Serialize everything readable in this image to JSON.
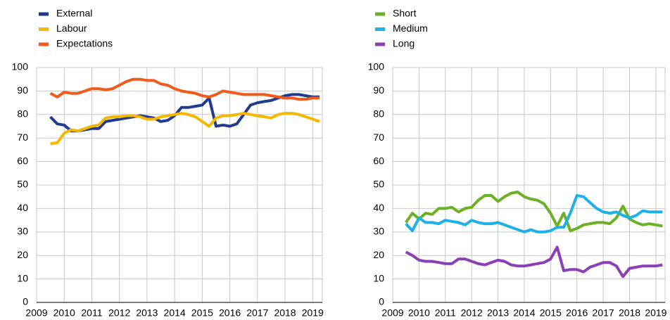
{
  "chart_data": [
    {
      "type": "line",
      "x": [
        2009.5,
        2009.75,
        2010,
        2010.25,
        2010.5,
        2010.75,
        2011,
        2011.25,
        2011.5,
        2011.75,
        2012,
        2012.25,
        2012.5,
        2012.75,
        2013,
        2013.25,
        2013.5,
        2013.75,
        2014,
        2014.25,
        2014.5,
        2014.75,
        2015,
        2015.25,
        2015.5,
        2015.75,
        2016,
        2016.25,
        2016.5,
        2016.75,
        2017,
        2017.25,
        2017.5,
        2017.75,
        2018,
        2018.25,
        2018.5,
        2018.75,
        2019,
        2019.25
      ],
      "series": [
        {
          "name": "External",
          "color": "#1f3b8f",
          "values": [
            79,
            76,
            75.5,
            73,
            73,
            73.5,
            74,
            74,
            77,
            77.5,
            78,
            78.5,
            79,
            79.5,
            79,
            78.5,
            77,
            77.5,
            79.5,
            83,
            83,
            83.5,
            84,
            87,
            75,
            75.5,
            75,
            76,
            80,
            84,
            85,
            85.5,
            86,
            87,
            88,
            88.5,
            88.5,
            88,
            87.5,
            87.5
          ]
        },
        {
          "name": "Labour",
          "color": "#f5b800",
          "values": [
            67.5,
            68,
            72,
            73.5,
            73,
            74,
            75,
            75.5,
            78.5,
            79,
            79,
            79.5,
            79.5,
            79,
            78,
            78,
            79,
            79.5,
            80,
            80.5,
            80,
            79,
            77,
            75,
            78.5,
            79.5,
            79.5,
            80,
            80.5,
            80,
            79.5,
            79,
            78.5,
            80,
            80.5,
            80.5,
            80,
            79,
            78,
            77
          ]
        },
        {
          "name": "Expectations",
          "color": "#f15a1b",
          "values": [
            89,
            87.5,
            89.5,
            89,
            89,
            90,
            91,
            91,
            90.5,
            91,
            92.5,
            94,
            95,
            95,
            94.5,
            94.5,
            93,
            92.5,
            91,
            90,
            89.5,
            89,
            88,
            87.5,
            88.5,
            90,
            89.5,
            89,
            88.5,
            88.5,
            88.5,
            88.5,
            88,
            87.5,
            87,
            87,
            86.5,
            86.5,
            87,
            87
          ]
        }
      ],
      "xlim": [
        2009,
        2019.35
      ],
      "xticks": [
        2009,
        2010,
        2011,
        2012,
        2013,
        2014,
        2015,
        2016,
        2017,
        2018,
        2019
      ],
      "ylim": [
        0,
        100
      ],
      "yticks": [
        0,
        10,
        20,
        30,
        40,
        50,
        60,
        70,
        80,
        90,
        100
      ],
      "grid": true,
      "legend": "top-left"
    },
    {
      "type": "line",
      "x": [
        2009.5,
        2009.75,
        2010,
        2010.25,
        2010.5,
        2010.75,
        2011,
        2011.25,
        2011.5,
        2011.75,
        2012,
        2012.25,
        2012.5,
        2012.75,
        2013,
        2013.25,
        2013.5,
        2013.75,
        2014,
        2014.25,
        2014.5,
        2014.75,
        2015,
        2015.25,
        2015.5,
        2015.75,
        2016,
        2016.25,
        2016.5,
        2016.75,
        2017,
        2017.25,
        2017.5,
        2017.75,
        2018,
        2018.25,
        2018.5,
        2018.75,
        2019,
        2019.25
      ],
      "series": [
        {
          "name": "Short",
          "color": "#6bb125",
          "values": [
            34,
            38,
            35.5,
            38,
            37.5,
            40,
            40,
            40.5,
            38.5,
            40,
            40.5,
            43.5,
            45.5,
            45.5,
            43,
            45,
            46.5,
            47,
            45,
            44,
            43.5,
            42,
            38,
            32.5,
            38,
            30.5,
            31.5,
            33,
            33.5,
            34,
            34,
            33.5,
            36,
            41,
            35.5,
            34,
            33,
            33.5,
            33,
            32.5
          ]
        },
        {
          "name": "Medium",
          "color": "#1eb1e7",
          "values": [
            33.5,
            30.5,
            36,
            34,
            34,
            33.5,
            35,
            34.5,
            34,
            33,
            35,
            34,
            33.5,
            33.5,
            34,
            33,
            32,
            31,
            30,
            31,
            30,
            30,
            30.5,
            32,
            32,
            38,
            45.5,
            45,
            42.5,
            40,
            38.5,
            38,
            38.5,
            37,
            36,
            37,
            39,
            38.5,
            38.5,
            38.5
          ]
        },
        {
          "name": "Long",
          "color": "#8a3fb6",
          "values": [
            21.5,
            20,
            18,
            17.5,
            17.5,
            17,
            16.5,
            16.5,
            18.5,
            18.5,
            17.5,
            16.5,
            16,
            17,
            18,
            17.5,
            16,
            15.5,
            15.5,
            16,
            16.5,
            17,
            18.5,
            23.5,
            13.5,
            14,
            14,
            13,
            15,
            16,
            17,
            17,
            15.5,
            11,
            14.5,
            15,
            15.5,
            15.5,
            15.5,
            16
          ]
        }
      ],
      "xlim": [
        2009,
        2019.35
      ],
      "xticks": [
        2009,
        2010,
        2011,
        2012,
        2013,
        2014,
        2015,
        2016,
        2017,
        2018,
        2019
      ],
      "ylim": [
        0,
        100
      ],
      "yticks": [
        0,
        10,
        20,
        30,
        40,
        50,
        60,
        70,
        80,
        90,
        100
      ],
      "grid": true,
      "legend": "top-left"
    }
  ]
}
